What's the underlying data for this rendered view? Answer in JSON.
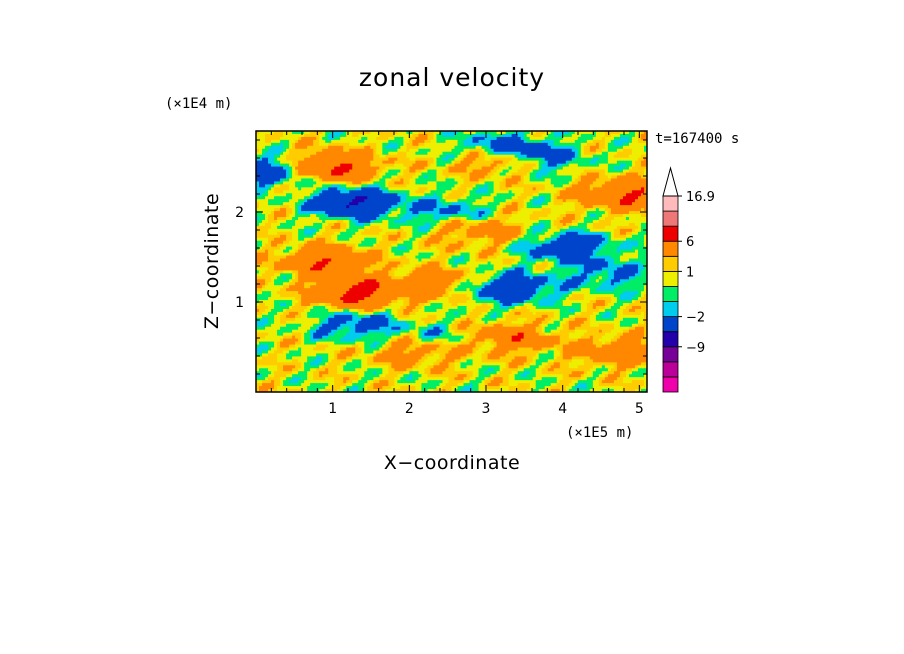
{
  "chart_data": {
    "type": "heatmap",
    "title": "zonal velocity",
    "xlabel": "X−coordinate",
    "ylabel": "Z−coordinate",
    "x_unit": "(×1E5 m)",
    "y_unit": "(×1E4 m)",
    "time_label": "t=167400 s",
    "xlim": [
      0,
      5.1
    ],
    "ylim": [
      0,
      2.9
    ],
    "x_ticks": [
      "1",
      "2",
      "3",
      "4",
      "5"
    ],
    "y_ticks": [
      "1",
      "2"
    ],
    "colorbar": {
      "levels": [
        -15,
        -12,
        -9,
        -6,
        -2,
        -1,
        0,
        1,
        2,
        6,
        10,
        13.5,
        16.9
      ],
      "tick_labels": [
        "16.9",
        "6",
        "1",
        "−2",
        "−9"
      ],
      "colors": [
        "#ee00aa",
        "#bb0099",
        "#770099",
        "#2200aa",
        "#0044cc",
        "#00ccee",
        "#00ee66",
        "#eeee00",
        "#ffcc00",
        "#ff8800",
        "#ee0000",
        "#ee7777",
        "#ffbbbb"
      ],
      "extend": "max"
    },
    "field_features": [
      {
        "kind": "positive",
        "x": 1.0,
        "z": 2.5,
        "value": 6
      },
      {
        "kind": "positive",
        "x": 3.2,
        "z": 2.6,
        "value": 6
      },
      {
        "kind": "positive",
        "x": 4.8,
        "z": 2.2,
        "value": 6
      },
      {
        "kind": "positive",
        "x": 1.3,
        "z": 1.1,
        "value": 7
      },
      {
        "kind": "positive",
        "x": 2.3,
        "z": 1.2,
        "value": 4
      },
      {
        "kind": "positive",
        "x": 0.9,
        "z": 1.45,
        "value": 5
      },
      {
        "kind": "positive",
        "x": 3.3,
        "z": 0.6,
        "value": 4
      },
      {
        "kind": "positive",
        "x": 2.1,
        "z": 0.45,
        "value": 3
      },
      {
        "kind": "positive",
        "x": 4.7,
        "z": 0.45,
        "value": 4
      },
      {
        "kind": "positive",
        "x": 2.9,
        "z": 1.8,
        "value": 3
      },
      {
        "kind": "negative",
        "x": 1.3,
        "z": 2.1,
        "value": -7
      },
      {
        "kind": "negative",
        "x": 0.1,
        "z": 2.45,
        "value": -5
      },
      {
        "kind": "negative",
        "x": 3.3,
        "z": 1.15,
        "value": -6
      },
      {
        "kind": "negative",
        "x": 4.1,
        "z": 1.6,
        "value": -5
      },
      {
        "kind": "negative",
        "x": 3.2,
        "z": 2.7,
        "value": -6
      },
      {
        "kind": "negative",
        "x": 3.7,
        "z": 2.6,
        "value": -4
      },
      {
        "kind": "negative",
        "x": 1.3,
        "z": 0.75,
        "value": -4
      },
      {
        "kind": "negative",
        "x": 2.5,
        "z": 2.0,
        "value": -3
      },
      {
        "kind": "negative",
        "x": 2.4,
        "z": 0.6,
        "value": -2
      },
      {
        "kind": "negative",
        "x": 4.6,
        "z": 1.3,
        "value": -3
      }
    ]
  }
}
